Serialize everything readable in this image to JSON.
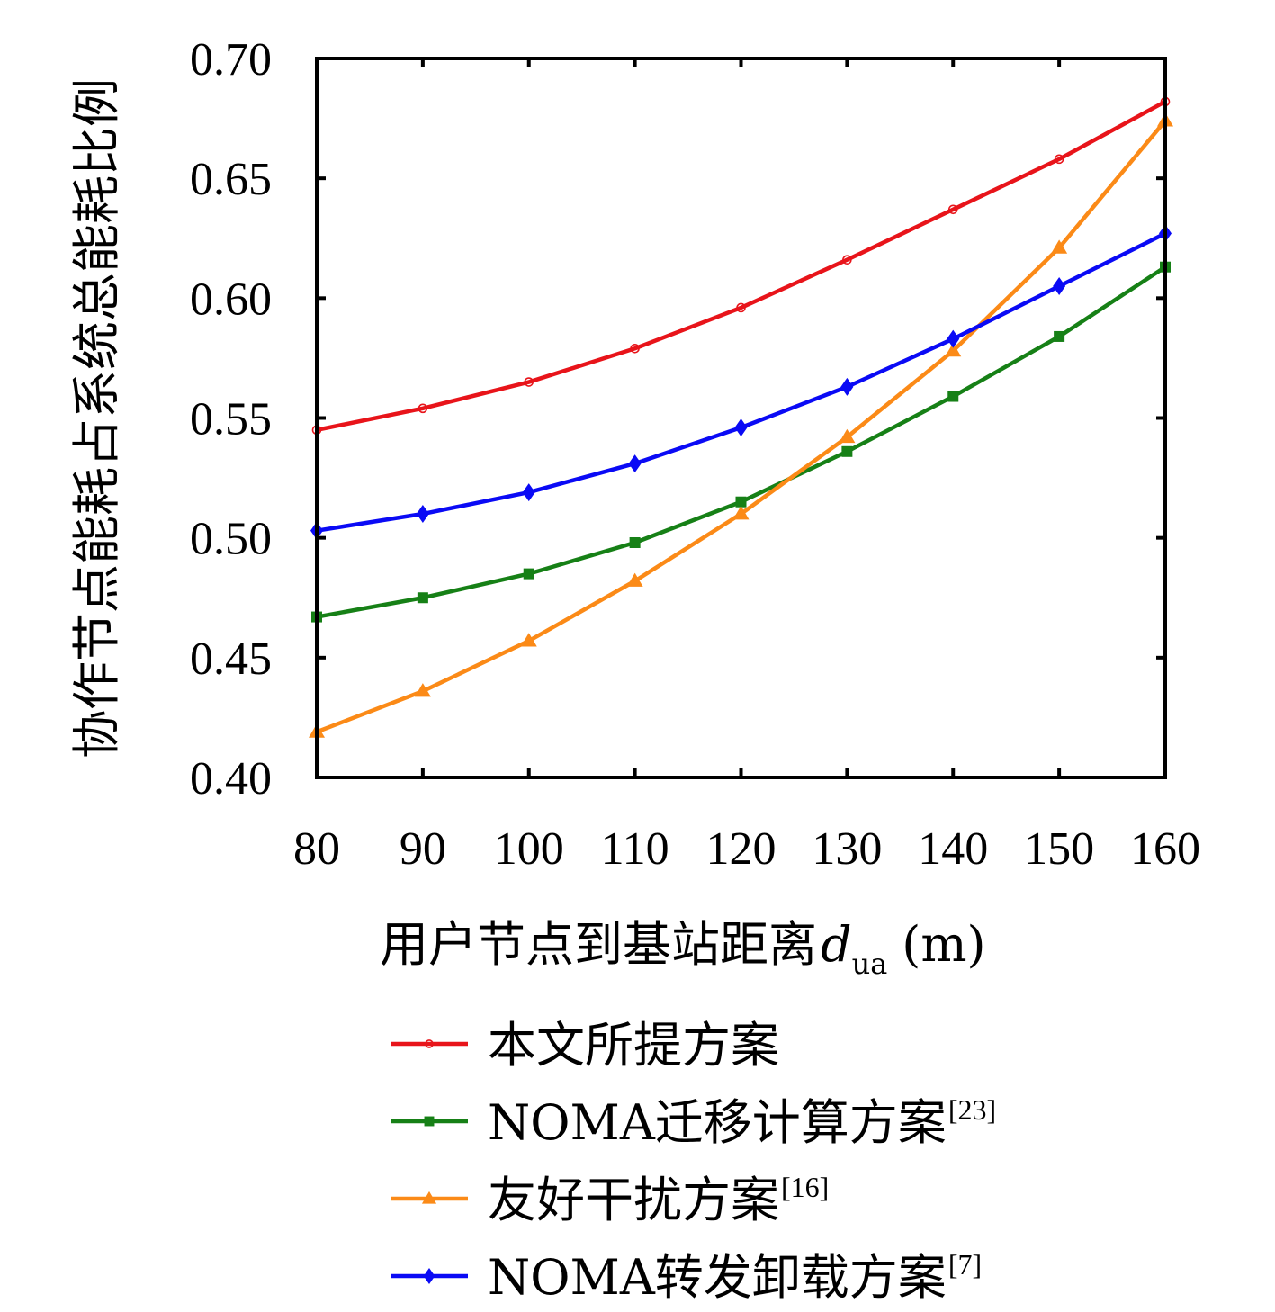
{
  "chart_data": {
    "type": "line",
    "title": "",
    "xlabel": "用户节点到基站距离",
    "xlabel_symbol": "d",
    "xlabel_subscript": "ua",
    "xlabel_unit": "(m)",
    "ylabel": "协作节点能耗占系统总能耗比例",
    "x": [
      80,
      90,
      100,
      110,
      120,
      130,
      140,
      150,
      160
    ],
    "xlim": [
      80,
      160
    ],
    "ylim": [
      0.4,
      0.7
    ],
    "xticks": [
      "80",
      "90",
      "100",
      "110",
      "120",
      "130",
      "140",
      "150",
      "160"
    ],
    "yticks": [
      "0.40",
      "0.45",
      "0.50",
      "0.55",
      "0.60",
      "0.65",
      "0.70"
    ],
    "grid": false,
    "legend_position": "below",
    "series": [
      {
        "name": "本文所提方案",
        "ref": "",
        "color": "#e8141a",
        "marker": "circle-open",
        "values": [
          0.545,
          0.554,
          0.565,
          0.579,
          0.596,
          0.616,
          0.637,
          0.658,
          0.682
        ]
      },
      {
        "name": "NOMA迁移计算方案",
        "ref": "[23]",
        "color": "#168016",
        "marker": "square",
        "values": [
          0.467,
          0.475,
          0.485,
          0.498,
          0.515,
          0.536,
          0.559,
          0.584,
          0.613
        ]
      },
      {
        "name": "友好干扰方案",
        "ref": "[16]",
        "color": "#fb8a17",
        "marker": "triangle",
        "values": [
          0.419,
          0.436,
          0.457,
          0.482,
          0.51,
          0.542,
          0.578,
          0.621,
          0.674
        ]
      },
      {
        "name": "NOMA转发卸载方案",
        "ref": "[7]",
        "color": "#0a0af5",
        "marker": "diamond",
        "values": [
          0.503,
          0.51,
          0.519,
          0.531,
          0.546,
          0.563,
          0.583,
          0.605,
          0.627
        ]
      }
    ]
  }
}
